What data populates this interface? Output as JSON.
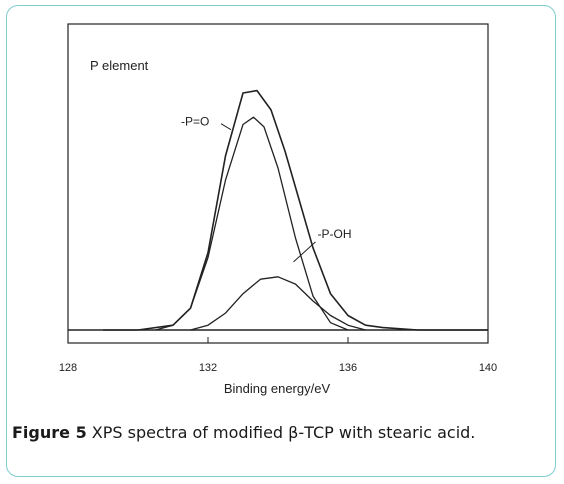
{
  "chart_data": {
    "type": "line",
    "title": "",
    "panel_label": "P element",
    "xlabel": "Binding energy/eV",
    "ylabel": "",
    "xlim": [
      128,
      140
    ],
    "ylim": [
      0,
      1.1
    ],
    "x_ticks": [
      128,
      132,
      136,
      140
    ],
    "grid": false,
    "legend": "none",
    "series": [
      {
        "x": [
          129.0,
          130.0,
          131.0,
          131.5,
          132.0,
          132.5,
          133.0,
          133.4,
          133.8,
          134.2,
          134.6,
          135.0,
          135.5,
          136.0,
          136.5,
          137.0,
          138.0,
          139.0,
          140.0
        ],
        "y": [
          0.0,
          0.0,
          0.02,
          0.09,
          0.32,
          0.72,
          0.98,
          0.99,
          0.91,
          0.74,
          0.54,
          0.34,
          0.15,
          0.06,
          0.02,
          0.01,
          0.0,
          0.0,
          0.0
        ]
      },
      {
        "x": [
          130.5,
          131.0,
          131.5,
          132.0,
          132.5,
          133.0,
          133.3,
          133.6,
          134.0,
          134.5,
          135.0,
          135.5,
          136.0
        ],
        "y": [
          0.0,
          0.02,
          0.09,
          0.3,
          0.62,
          0.85,
          0.88,
          0.84,
          0.67,
          0.38,
          0.14,
          0.03,
          0.0
        ]
      },
      {
        "x": [
          131.5,
          132.0,
          132.5,
          133.0,
          133.5,
          134.0,
          134.5,
          135.0,
          135.5,
          136.0,
          136.5
        ],
        "y": [
          0.0,
          0.02,
          0.07,
          0.15,
          0.21,
          0.22,
          0.19,
          0.12,
          0.06,
          0.02,
          0.0
        ]
      }
    ],
    "annotations": [
      {
        "text": "-P=O",
        "x": 132.6,
        "y": 0.82
      },
      {
        "text": "-P-OH",
        "x": 134.5,
        "y": 0.29
      }
    ]
  },
  "caption": {
    "label": "Figure 5",
    "text": " XPS spectra of modified β-TCP with stearic acid."
  }
}
